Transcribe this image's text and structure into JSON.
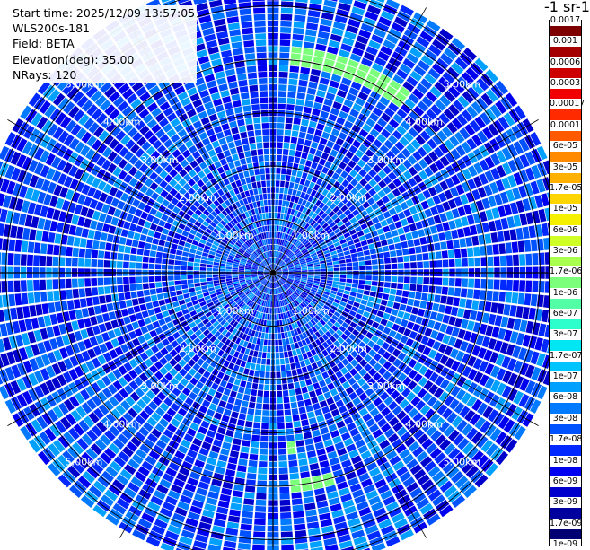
{
  "info": {
    "start_time": "Start time: 2025/12/09 13:57:05",
    "instrument": "WLS200s-181",
    "field": "Field: BETA",
    "elevation": "Elevation(deg): 35.00",
    "nrays": "NRays: 120"
  },
  "colorbar": {
    "title": "-1 sr-1",
    "labels": [
      "0.0017",
      "0.001",
      "0.0006",
      "0.0003",
      "0.00017",
      "0.0001",
      "6e-05",
      "3e-05",
      "1.7e-05",
      "1e-05",
      "6e-06",
      "3e-06",
      "1.7e-06",
      "1e-06",
      "6e-07",
      "3e-07",
      "1.7e-07",
      "1e-07",
      "6e-08",
      "3e-08",
      "1.7e-08",
      "1e-08",
      "6e-09",
      "3e-09",
      "1.7e-09",
      "1e-09"
    ],
    "colors": [
      "#7f0000",
      "#a50000",
      "#cc0000",
      "#f00000",
      "#ff2a00",
      "#ff5a00",
      "#ff8a00",
      "#ffb000",
      "#ffd500",
      "#f5f000",
      "#d0ff26",
      "#a8ff4e",
      "#7cff7a",
      "#52ffa4",
      "#2cffcc",
      "#00e6f2",
      "#00c4ff",
      "#00a0ff",
      "#007aff",
      "#0052ff",
      "#0028ff",
      "#0000f0",
      "#0000cc",
      "#00009f",
      "#000073"
    ]
  },
  "chart_data": {
    "type": "heatmap",
    "projection": "polar-ppi",
    "title": "",
    "field": "BETA",
    "elevation_deg": 35.0,
    "n_rays": 120,
    "ray_spacing_deg": 3,
    "range_km": [
      0,
      5.4
    ],
    "range_rings_km": [
      1,
      2,
      3,
      4,
      5
    ],
    "ring_labels": [
      "1.00km",
      "2.00km",
      "3.00km",
      "4.00km",
      "5.00km"
    ],
    "scale": "log",
    "vmin": 1e-09,
    "vmax": 0.0017,
    "background_typical_value": 2e-08,
    "features": [
      {
        "name": "north arc",
        "azimuth_deg": [
          5,
          38
        ],
        "range_km": [
          3.9,
          4.15
        ],
        "value": 1.7e-06
      },
      {
        "name": "south arc",
        "azimuth_deg": [
          163,
          175
        ],
        "range_km": [
          3.8,
          4.1
        ],
        "value": 1.7e-06
      },
      {
        "name": "south spot",
        "azimuth_deg": [
          172,
          176
        ],
        "range_km": [
          3.1,
          3.3
        ],
        "value": 1e-06
      }
    ]
  }
}
